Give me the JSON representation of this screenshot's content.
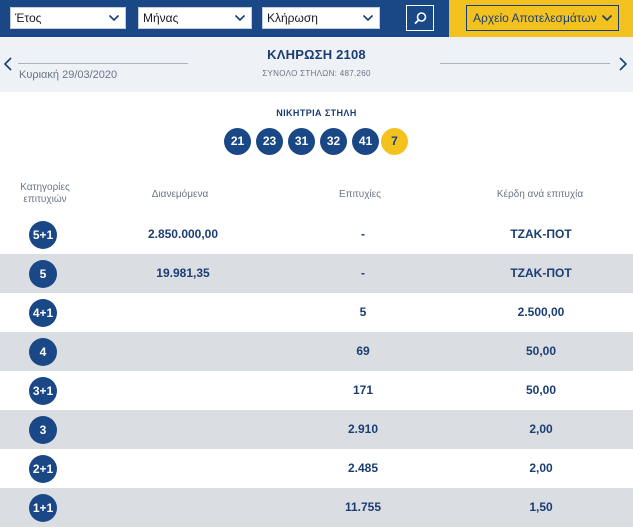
{
  "filters": {
    "year_label": "Έτος",
    "month_label": "Μήνας",
    "draw_label": "Κλήρωση",
    "archive_label": "Αρχείο Αποτελεσμάτων"
  },
  "draw": {
    "date": "Κυριακή 29/03/2020",
    "title": "ΚΛΗΡΩΣΗ 2108",
    "total_columns": "ΣΥΝΟΛΟ ΣΤΗΛΩΝ: 487.260"
  },
  "winning": {
    "title": "ΝΙΚΗΤΡΙΑ ΣΤΗΛΗ",
    "numbers": [
      "21",
      "23",
      "31",
      "32",
      "41"
    ],
    "bonus": "7"
  },
  "table": {
    "headers": {
      "category": "Κατηγορίες επιτυχιών",
      "distributed": "Διανεμόμενα",
      "winners": "Επιτυχίες",
      "prize": "Κέρδη ανά επιτυχία"
    },
    "rows": [
      {
        "category": "5+1",
        "distributed": "2.850.000,00",
        "winners": "-",
        "prize": "ΤΖΑΚ-ΠΟΤ"
      },
      {
        "category": "5",
        "distributed": "19.981,35",
        "winners": "-",
        "prize": "ΤΖΑΚ-ΠΟΤ"
      },
      {
        "category": "4+1",
        "distributed": "",
        "winners": "5",
        "prize": "2.500,00"
      },
      {
        "category": "4",
        "distributed": "",
        "winners": "69",
        "prize": "50,00"
      },
      {
        "category": "3+1",
        "distributed": "",
        "winners": "171",
        "prize": "50,00"
      },
      {
        "category": "3",
        "distributed": "",
        "winners": "2.910",
        "prize": "2,00"
      },
      {
        "category": "2+1",
        "distributed": "",
        "winners": "2.485",
        "prize": "2,00"
      },
      {
        "category": "1+1",
        "distributed": "",
        "winners": "11.755",
        "prize": "1,50"
      }
    ]
  },
  "colors": {
    "brand_blue": "#1a4886",
    "accent_yellow": "#f4c21f",
    "row_alt": "#dadde2"
  }
}
